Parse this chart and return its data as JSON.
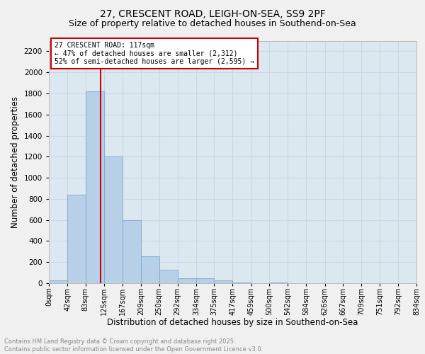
{
  "title1": "27, CRESCENT ROAD, LEIGH-ON-SEA, SS9 2PF",
  "title2": "Size of property relative to detached houses in Southend-on-Sea",
  "xlabel": "Distribution of detached houses by size in Southend-on-Sea",
  "ylabel": "Number of detached properties",
  "bin_edges": [
    0,
    42,
    83,
    125,
    167,
    209,
    250,
    292,
    334,
    375,
    417,
    459,
    500,
    542,
    584,
    626,
    667,
    709,
    751,
    792,
    834
  ],
  "bar_heights": [
    25,
    840,
    1820,
    1200,
    595,
    255,
    125,
    50,
    45,
    30,
    10,
    0,
    10,
    0,
    0,
    0,
    0,
    0,
    0,
    0
  ],
  "bar_color": "#b8cfe8",
  "bar_edge_color": "#7aaad0",
  "property_line_x": 117,
  "annotation_title": "27 CRESCENT ROAD: 117sqm",
  "annotation_line1": "← 47% of detached houses are smaller (2,312)",
  "annotation_line2": "52% of semi-detached houses are larger (2,595) →",
  "annotation_box_color": "#ffffff",
  "annotation_box_edge_color": "#cc0000",
  "vline_color": "#cc0000",
  "ylim": [
    0,
    2300
  ],
  "yticks": [
    0,
    200,
    400,
    600,
    800,
    1000,
    1200,
    1400,
    1600,
    1800,
    2000,
    2200
  ],
  "grid_color": "#c8d8e8",
  "background_color": "#dce8f0",
  "fig_background_color": "#f0f0f0",
  "footer_line1": "Contains HM Land Registry data © Crown copyright and database right 2025.",
  "footer_line2": "Contains public sector information licensed under the Open Government Licence v3.0.",
  "footer_color": "#888888",
  "title1_fontsize": 10,
  "title2_fontsize": 9,
  "xlabel_fontsize": 8.5,
  "ylabel_fontsize": 8.5,
  "tick_fontsize": 7,
  "ytick_fontsize": 7.5,
  "annot_fontsize": 7,
  "footer_fontsize": 6
}
